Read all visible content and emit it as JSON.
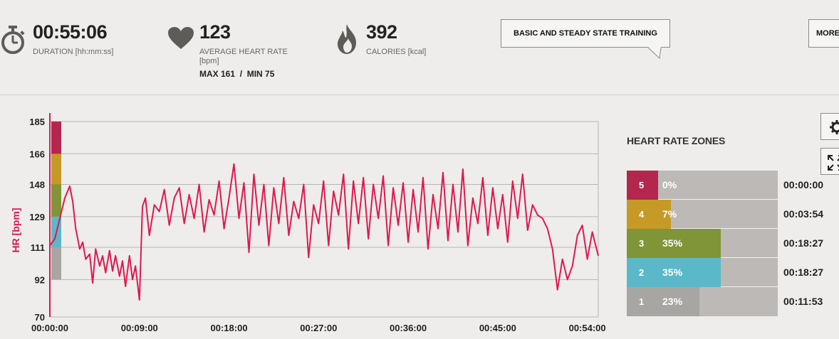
{
  "summary": {
    "duration": {
      "value": "00:55:06",
      "label": "DURATION [hh:mm:ss]",
      "icon": "stopwatch-icon"
    },
    "heart_rate": {
      "value": "123",
      "label_line1": "AVERAGE HEART RATE",
      "label_line2": "[bpm]",
      "max_min": "MAX 161  /  MIN 75",
      "icon": "heart-icon"
    },
    "calories": {
      "value": "392",
      "label": "CALORIES [kcal]",
      "icon": "flame-icon"
    }
  },
  "training_benefit_label": "BASIC AND STEADY STATE TRAINING",
  "more_button_label": "MORE",
  "zones": {
    "title": "HEART RATE ZONES",
    "items": [
      {
        "zone": "5",
        "percent": "0%",
        "fraction": 0.0,
        "time": "00:00:00",
        "color": "#b5264f"
      },
      {
        "zone": "4",
        "percent": "7%",
        "fraction": 0.07,
        "time": "00:03:54",
        "color": "#c59a27"
      },
      {
        "zone": "3",
        "percent": "35%",
        "fraction": 0.35,
        "time": "00:18:27",
        "color": "#7f9538"
      },
      {
        "zone": "2",
        "percent": "35%",
        "fraction": 0.35,
        "time": "00:18:27",
        "color": "#5bb8c9"
      },
      {
        "zone": "1",
        "percent": "23%",
        "fraction": 0.23,
        "time": "00:11:53",
        "color": "#a8a6a3"
      }
    ]
  },
  "colors": {
    "line": "#e0184c",
    "axis_label": "#e0184c"
  },
  "chart_data": {
    "type": "line",
    "ylabel": "HR [bpm]",
    "yticks": [
      "185",
      "166",
      "148",
      "129",
      "111",
      "92",
      "70"
    ],
    "ytick_values": [
      185,
      166,
      148,
      129,
      111,
      92,
      70
    ],
    "xticks": [
      "00:00:00",
      "00:09:00",
      "00:18:00",
      "00:27:00",
      "00:36:00",
      "00:45:00",
      "00:54:00"
    ],
    "ylim": [
      70,
      185
    ],
    "xlim_minutes": [
      0,
      55.1
    ],
    "zone_bands": [
      {
        "zone": "5",
        "from": 166,
        "to": 185,
        "color": "#b5264f"
      },
      {
        "zone": "4",
        "from": 148,
        "to": 166,
        "color": "#c59a27"
      },
      {
        "zone": "3",
        "from": 129,
        "to": 148,
        "color": "#7f9538"
      },
      {
        "zone": "2",
        "from": 111,
        "to": 129,
        "color": "#5bb8c9"
      },
      {
        "zone": "1",
        "from": 92,
        "to": 111,
        "color": "#a8a6a3"
      }
    ],
    "series": [
      {
        "x_minutes": [
          0,
          0.5,
          1,
          1.5,
          2,
          2.3,
          2.6,
          3,
          3.3,
          3.6,
          4,
          4.3,
          4.6,
          5,
          5.3,
          5.6,
          6,
          6.3,
          6.6,
          7,
          7.3,
          7.6,
          8,
          8.3,
          8.6,
          9,
          9.3,
          9.6,
          10,
          10.5,
          11,
          11.5,
          12,
          12.5,
          13,
          13.5,
          14,
          14.5,
          15,
          15.5,
          16,
          16.5,
          17,
          17.5,
          18,
          18.5,
          19,
          19.5,
          20,
          20.5,
          21,
          21.5,
          22,
          22.5,
          23,
          23.5,
          24,
          24.5,
          25,
          25.5,
          26,
          26.5,
          27,
          27.5,
          28,
          28.5,
          29,
          29.5,
          30,
          30.5,
          31,
          31.5,
          32,
          32.5,
          33,
          33.5,
          34,
          34.5,
          35,
          35.5,
          36,
          36.5,
          37,
          37.5,
          38,
          38.5,
          39,
          39.5,
          40,
          40.5,
          41,
          41.5,
          42,
          42.5,
          43,
          43.5,
          44,
          44.5,
          45,
          45.5,
          46,
          46.5,
          47,
          47.5,
          48,
          48.5,
          49,
          49.5,
          50,
          50.5,
          51,
          51.5,
          52,
          52.5,
          53,
          53.5,
          54,
          54.5,
          55.1
        ],
        "y": [
          112,
          116,
          128,
          140,
          147,
          138,
          122,
          110,
          114,
          104,
          107,
          90,
          110,
          100,
          106,
          96,
          109,
          97,
          106,
          94,
          103,
          88,
          106,
          92,
          100,
          80,
          135,
          140,
          118,
          136,
          132,
          145,
          124,
          140,
          146,
          125,
          142,
          128,
          148,
          120,
          139,
          130,
          150,
          122,
          140,
          160,
          128,
          149,
          108,
          154,
          124,
          148,
          112,
          146,
          125,
          152,
          118,
          138,
          128,
          148,
          105,
          136,
          125,
          150,
          112,
          144,
          130,
          154,
          110,
          150,
          125,
          152,
          116,
          148,
          128,
          153,
          112,
          146,
          124,
          149,
          114,
          145,
          120,
          152,
          110,
          142,
          122,
          155,
          115,
          148,
          120,
          157,
          112,
          140,
          125,
          152,
          118,
          146,
          122,
          142,
          114,
          150,
          128,
          154,
          121,
          136,
          130,
          128,
          122,
          110,
          86,
          104,
          92,
          100,
          118,
          124,
          104,
          120,
          106
        ]
      }
    ]
  }
}
